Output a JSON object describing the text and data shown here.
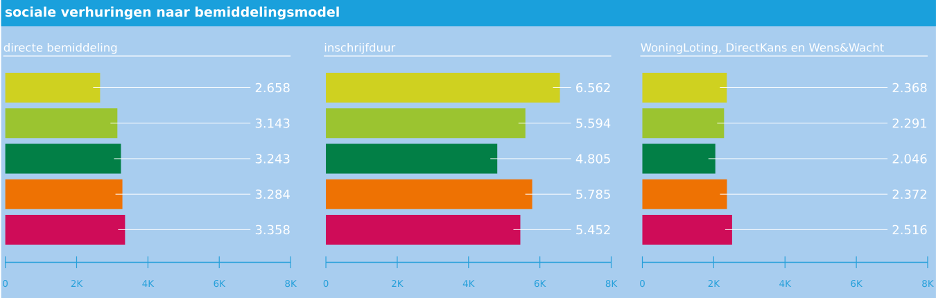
{
  "chart_data": [
    {
      "type": "bar",
      "orientation": "horizontal",
      "title": "sociale verhuringen naar bemiddelingsmodel",
      "subtitle": "directe bemiddeling",
      "categories": [
        null,
        null,
        null,
        null,
        null
      ],
      "values": [
        2658,
        3143,
        3243,
        3284,
        3358
      ],
      "value_labels": [
        "2.658",
        "3.143",
        "3.243",
        "3.284",
        "3.358"
      ],
      "colors": [
        "#cfd120",
        "#9bc430",
        "#027f46",
        "#ee7203",
        "#cf0c58"
      ],
      "xlim": [
        0,
        8000
      ],
      "xticks": [
        0,
        {
          "value": 2000,
          "label": "2K"
        },
        {
          "value": 4000,
          "label": "4K"
        },
        {
          "value": 6000,
          "label": "6K"
        },
        {
          "value": 8000,
          "label": "8K"
        }
      ]
    },
    {
      "type": "bar",
      "orientation": "horizontal",
      "title": "inschrijfduur",
      "categories": [
        null,
        null,
        null,
        null,
        null
      ],
      "values": [
        6562,
        5594,
        4805,
        5785,
        5452
      ],
      "value_labels": [
        "6.562",
        "5.594",
        "4.805",
        "5.785",
        "5.452"
      ],
      "colors": [
        "#cfd120",
        "#9bc430",
        "#027f46",
        "#ee7203",
        "#cf0c58"
      ],
      "xlim": [
        0,
        8000
      ],
      "xticks": [
        0,
        {
          "value": 2000,
          "label": "2K"
        },
        {
          "value": 4000,
          "label": "4K"
        },
        {
          "value": 6000,
          "label": "6K"
        },
        {
          "value": 8000,
          "label": "8K"
        }
      ]
    },
    {
      "type": "bar",
      "orientation": "horizontal",
      "title": "WoningLoting, DirectKans en Wens&Wacht",
      "categories": [
        null,
        null,
        null,
        null,
        null
      ],
      "values": [
        2368,
        2291,
        2046,
        2372,
        2516
      ],
      "value_labels": [
        "2.368",
        "2.291",
        "2.046",
        "2.372",
        "2.516"
      ],
      "colors": [
        "#cfd120",
        "#9bc430",
        "#027f46",
        "#ee7203",
        "#cf0c58"
      ],
      "xlim": [
        0,
        8000
      ],
      "xticks": [
        0,
        {
          "value": 2000,
          "label": "2K"
        },
        {
          "value": 4000,
          "label": "4K"
        },
        {
          "value": 6000,
          "label": "6K"
        },
        {
          "value": 8000,
          "label": "8K"
        }
      ]
    }
  ]
}
